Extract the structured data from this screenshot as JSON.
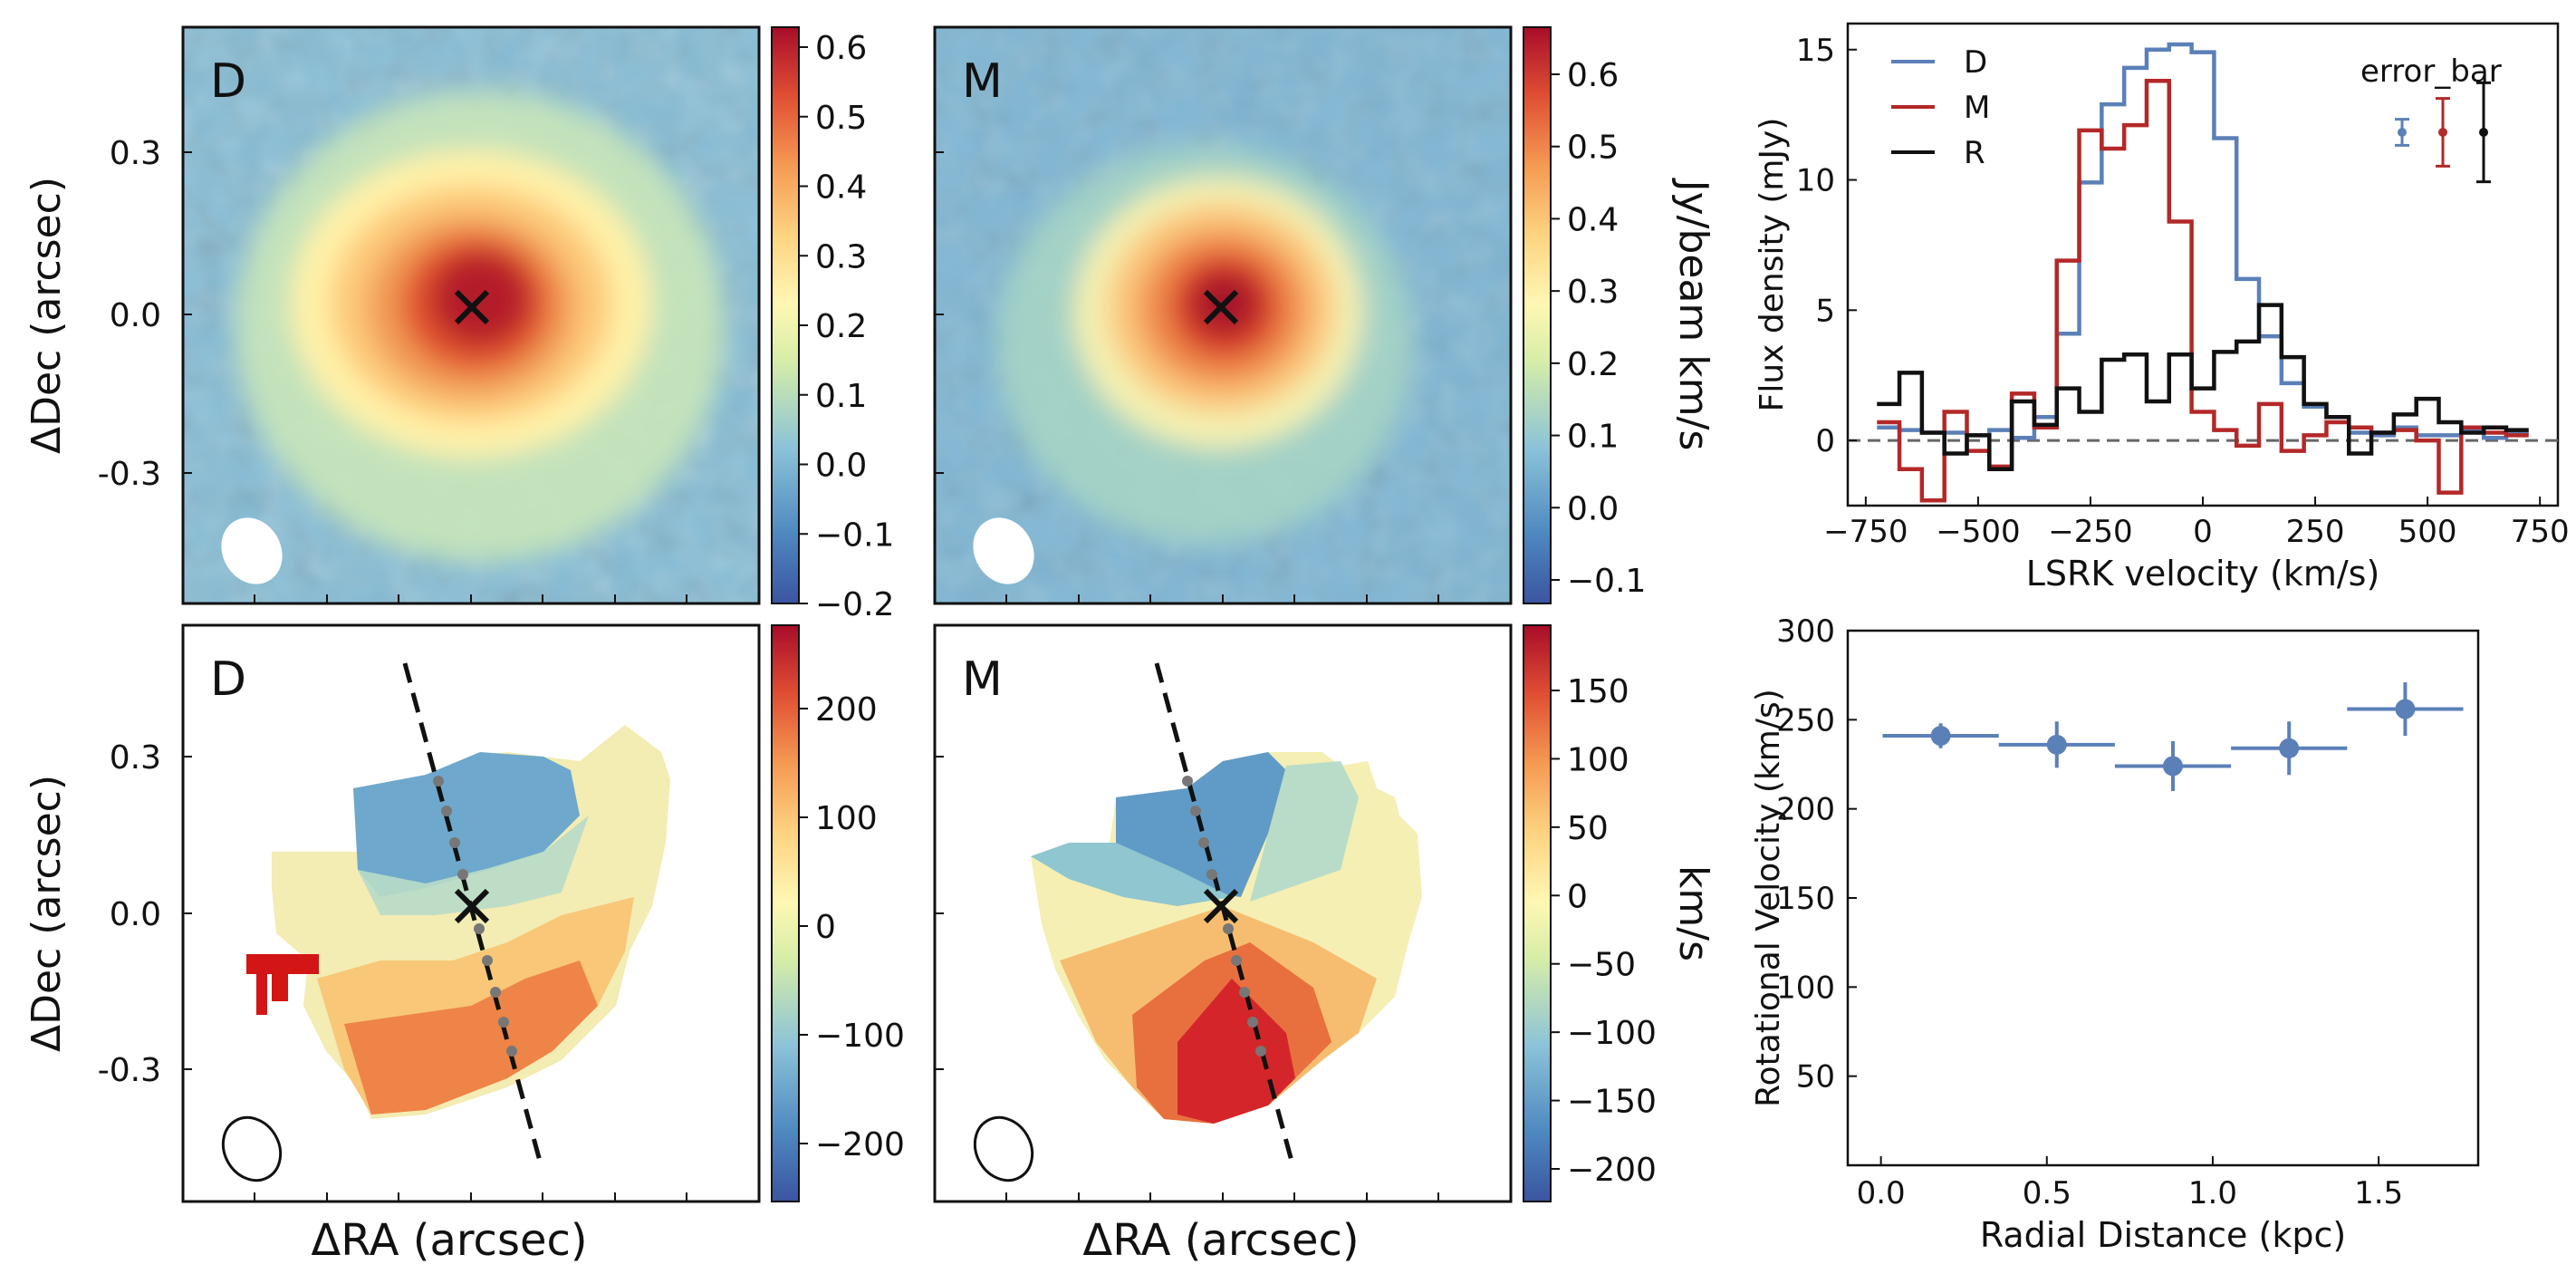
{
  "colors": {
    "series_D": "#5b80b8",
    "series_M": "#b42828",
    "series_R": "#111111",
    "zero_line": "#666666",
    "cmap": [
      "#3a55a0",
      "#4e88c0",
      "#8bc3d8",
      "#d6eda8",
      "#fff7b4",
      "#fdd380",
      "#f59a52",
      "#e04f33",
      "#a70d2a"
    ]
  },
  "labels": {
    "dec_axis": "ΔDec (arcsec)",
    "ra_axis": "ΔRA (arcsec)",
    "dec_ticks": [
      "0.3",
      "0.0",
      "-0.3"
    ],
    "mom0_unit": "Jy/beam km/s",
    "mom1_unit": "km/s"
  },
  "panels": {
    "mom0_D": {
      "letter": "D",
      "cbar_ticks": [
        "0.6",
        "0.5",
        "0.4",
        "0.3",
        "0.2",
        "0.1",
        "0.0",
        "−0.1",
        "−0.2"
      ]
    },
    "mom0_M": {
      "letter": "M",
      "cbar_ticks": [
        "0.6",
        "0.5",
        "0.4",
        "0.3",
        "0.2",
        "0.1",
        "0.0",
        "−0.1"
      ]
    },
    "mom1_D": {
      "letter": "D",
      "cbar_ticks": [
        "200",
        "100",
        "0",
        "−100",
        "−200"
      ]
    },
    "mom1_M": {
      "letter": "M",
      "cbar_ticks": [
        "150",
        "100",
        "50",
        "0",
        "−50",
        "−100",
        "−150",
        "−200"
      ]
    }
  },
  "chart_data": [
    {
      "type": "line",
      "xlabel": "LSRK velocity (km/s)",
      "ylabel": "Flux density (mJy)",
      "xlim": [
        -790,
        790
      ],
      "ylim": [
        -2.5,
        16
      ],
      "xticks": [
        -750,
        -500,
        -250,
        0,
        250,
        500,
        750
      ],
      "yticks": [
        0,
        5,
        10,
        15
      ],
      "legend": "top-left",
      "error_legend_title": "error_bar",
      "series": [
        {
          "name": "D",
          "step_edges": [
            -725,
            -675,
            -625,
            -575,
            -525,
            -475,
            -425,
            -375,
            -325,
            -275,
            -225,
            -175,
            -125,
            -75,
            -25,
            25,
            75,
            125,
            175,
            225,
            275,
            325,
            375,
            425,
            475,
            525,
            575,
            625,
            675,
            725
          ],
          "values": [
            0.5,
            0.4,
            0.3,
            0.3,
            0.2,
            0.4,
            0.1,
            0.9,
            4.1,
            9.9,
            12.9,
            14.3,
            15.0,
            15.2,
            14.9,
            11.6,
            6.2,
            4.0,
            2.2,
            1.3,
            0.9,
            0.3,
            0.2,
            0.5,
            0.2,
            0.2,
            0.4,
            0.1,
            0.3
          ],
          "error": 0.5
        },
        {
          "name": "M",
          "step_edges": [
            -725,
            -675,
            -625,
            -575,
            -525,
            -475,
            -425,
            -375,
            -325,
            -275,
            -225,
            -175,
            -125,
            -75,
            -25,
            25,
            75,
            125,
            175,
            225,
            275,
            325,
            375,
            425,
            475,
            525,
            575,
            625,
            675,
            725
          ],
          "values": [
            0.7,
            -1.1,
            -2.3,
            1.1,
            -0.4,
            -1.0,
            1.8,
            0.5,
            6.9,
            11.9,
            11.2,
            12.1,
            13.8,
            8.4,
            1.1,
            0.4,
            -0.2,
            1.4,
            -0.4,
            0.2,
            0.7,
            0.5,
            0.3,
            0.4,
            0.0,
            -2.0,
            0.5,
            0.3,
            0.2
          ],
          "error": 1.3
        },
        {
          "name": "R",
          "step_edges": [
            -725,
            -675,
            -625,
            -575,
            -525,
            -475,
            -425,
            -375,
            -325,
            -275,
            -225,
            -175,
            -125,
            -75,
            -25,
            25,
            75,
            125,
            175,
            225,
            275,
            325,
            375,
            425,
            475,
            525,
            575,
            625,
            675,
            725
          ],
          "values": [
            1.4,
            2.6,
            0.3,
            -0.5,
            0.2,
            -1.1,
            1.5,
            0.6,
            2.0,
            1.1,
            3.1,
            3.3,
            1.5,
            3.3,
            2.0,
            3.4,
            3.8,
            5.2,
            3.2,
            1.4,
            0.9,
            -0.5,
            0.3,
            1.0,
            1.6,
            0.7,
            0.3,
            0.5,
            0.4
          ],
          "error": 1.9
        }
      ]
    },
    {
      "type": "scatter",
      "xlabel": "Radial Distance (kpc)",
      "ylabel": "Rotational Velocity (km/s)",
      "xlim": [
        -0.1,
        1.8
      ],
      "ylim": [
        0,
        300
      ],
      "xticks": [
        0.0,
        0.5,
        1.0,
        1.5
      ],
      "yticks": [
        50,
        100,
        150,
        200,
        250,
        300
      ],
      "x": [
        0.18,
        0.53,
        0.88,
        1.23,
        1.58
      ],
      "y": [
        241,
        236,
        224,
        234,
        256
      ],
      "xerr": [
        0.175,
        0.175,
        0.175,
        0.175,
        0.175
      ],
      "yerr": [
        7,
        13,
        14,
        15,
        15
      ]
    }
  ]
}
